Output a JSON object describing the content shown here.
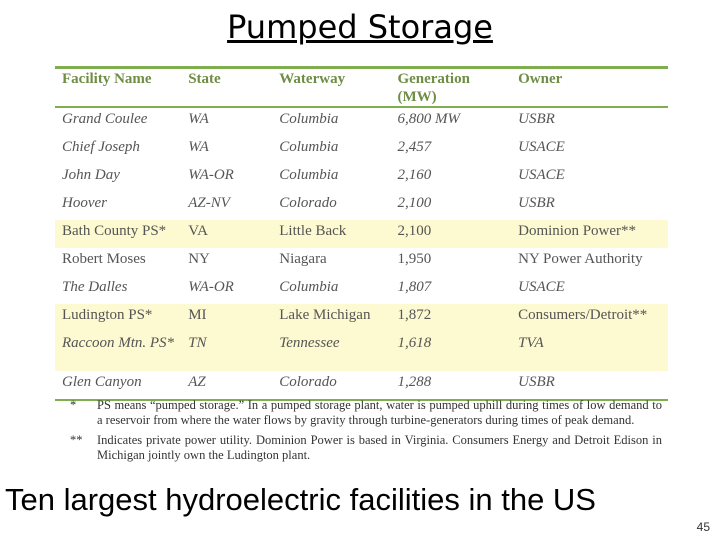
{
  "title": "Pumped Storage",
  "table": {
    "columns": [
      "Facility Name",
      "State",
      "Waterway",
      "Generation (MW)",
      "Owner"
    ],
    "rows": [
      [
        "Grand Coulee",
        "WA",
        "Columbia",
        "6,800 MW",
        "USBR"
      ],
      [
        "Chief Joseph",
        "WA",
        "Columbia",
        "2,457",
        "USACE"
      ],
      [
        "John Day",
        "WA-OR",
        "Columbia",
        "2,160",
        "USACE"
      ],
      [
        "Hoover",
        "AZ-NV",
        "Colorado",
        "2,100",
        "USBR"
      ],
      [
        "Bath County PS*",
        "VA",
        "Little Back",
        "2,100",
        "Dominion Power**"
      ],
      [
        "Robert Moses",
        "NY",
        "Niagara",
        "1,950",
        "NY Power Authority"
      ],
      [
        "The Dalles",
        "WA-OR",
        "Columbia",
        "1,807",
        "USACE"
      ],
      [
        "Ludington PS*",
        "MI",
        "Lake Michigan",
        "1,872",
        "Consumers/Detroit**"
      ],
      [
        "Raccoon Mtn. PS*",
        "TN",
        "Tennessee",
        "1,618",
        "TVA"
      ],
      [
        "Glen Canyon",
        "AZ",
        "Colorado",
        "1,288",
        "USBR"
      ]
    ]
  },
  "footnotes": [
    {
      "mark": "*",
      "text": "PS means “pumped storage.” In a pumped storage plant, water is pumped uphill during times of low demand to a reservoir from where the water flows by gravity through turbine-generators during times of peak demand."
    },
    {
      "mark": "**",
      "text": "Indicates private power utility. Dominion Power is based in Virginia. Consumers Energy and Detroit Edison in Michigan jointly own the Ludington plant."
    }
  ],
  "caption": "Ten largest hydroelectric facilities in the US",
  "page_number": "45"
}
